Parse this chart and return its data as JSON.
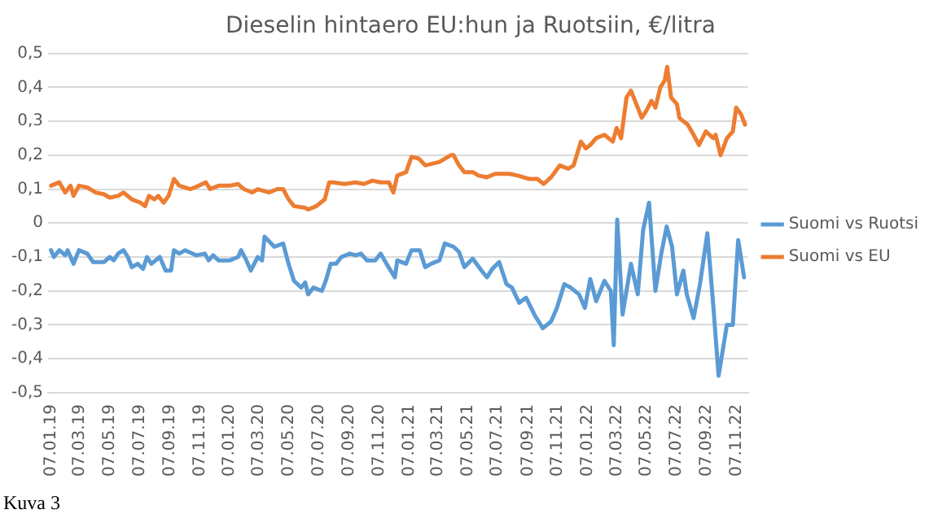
{
  "chart_data": {
    "type": "line",
    "title": "Dieselin hintaero EU:hun ja Ruotsiin, €/litra",
    "annotations": [
      "Kuva 3"
    ],
    "xlim": [
      "2019-01-01",
      "2022-11-30"
    ],
    "xticks": [
      {
        "value": "2019-01-07",
        "label": "07.01.19"
      },
      {
        "value": "2019-03-07",
        "label": "07.03.19"
      },
      {
        "value": "2019-05-07",
        "label": "07.05.19"
      },
      {
        "value": "2019-07-07",
        "label": "07.07.19"
      },
      {
        "value": "2019-09-07",
        "label": "07.09.19"
      },
      {
        "value": "2019-11-07",
        "label": "07.11.19"
      },
      {
        "value": "2020-01-07",
        "label": "07.01.20"
      },
      {
        "value": "2020-03-07",
        "label": "07.03.20"
      },
      {
        "value": "2020-05-07",
        "label": "07.05.20"
      },
      {
        "value": "2020-07-07",
        "label": "07.07.20"
      },
      {
        "value": "2020-09-07",
        "label": "07.09.20"
      },
      {
        "value": "2020-11-07",
        "label": "07.11.20"
      },
      {
        "value": "2021-01-07",
        "label": "07.01.21"
      },
      {
        "value": "2021-03-07",
        "label": "07.03.21"
      },
      {
        "value": "2021-05-07",
        "label": "07.05.21"
      },
      {
        "value": "2021-07-07",
        "label": "07.07.21"
      },
      {
        "value": "2021-09-07",
        "label": "07.09.21"
      },
      {
        "value": "2021-11-07",
        "label": "07.11.21"
      },
      {
        "value": "2022-01-07",
        "label": "07.01.22"
      },
      {
        "value": "2022-03-07",
        "label": "07.03.22"
      },
      {
        "value": "2022-05-07",
        "label": "07.05.22"
      },
      {
        "value": "2022-07-07",
        "label": "07.07.22"
      },
      {
        "value": "2022-09-07",
        "label": "07.09.22"
      },
      {
        "value": "2022-11-07",
        "label": "07.11.22"
      }
    ],
    "ylim": [
      -0.5,
      0.5
    ],
    "yticks": [
      {
        "value": -0.5,
        "label": "-0,5"
      },
      {
        "value": -0.4,
        "label": "-0,4"
      },
      {
        "value": -0.3,
        "label": "-0,3"
      },
      {
        "value": -0.2,
        "label": "-0,2"
      },
      {
        "value": -0.1,
        "label": "-0,1"
      },
      0,
      {
        "value": 0.1,
        "label": "0,1"
      },
      {
        "value": 0.2,
        "label": "0,2"
      },
      {
        "value": 0.3,
        "label": "0,3"
      },
      {
        "value": 0.4,
        "label": "0,4"
      },
      {
        "value": 0.5,
        "label": "0,5"
      }
    ],
    "grid": "y",
    "legend": "right",
    "marker": "none",
    "line_style": "solid",
    "series": [
      {
        "name": "Suomi vs Ruotsi",
        "color": "#5b9bd5",
        "x": [
          "2019-01-07",
          "2019-01-13",
          "2019-01-24",
          "2019-02-05",
          "2019-02-10",
          "2019-02-22",
          "2019-03-05",
          "2019-03-22",
          "2019-04-03",
          "2019-04-25",
          "2019-05-07",
          "2019-05-15",
          "2019-05-24",
          "2019-06-04",
          "2019-06-13",
          "2019-06-21",
          "2019-07-03",
          "2019-07-14",
          "2019-07-22",
          "2019-07-31",
          "2019-08-17",
          "2019-08-29",
          "2019-09-09",
          "2019-09-15",
          "2019-09-26",
          "2019-10-08",
          "2019-10-31",
          "2019-11-17",
          "2019-11-25",
          "2019-12-04",
          "2019-12-15",
          "2020-01-07",
          "2020-01-24",
          "2020-01-30",
          "2020-02-10",
          "2020-02-19",
          "2020-03-04",
          "2020-03-13",
          "2020-03-18",
          "2020-04-07",
          "2020-04-25",
          "2020-05-06",
          "2020-05-17",
          "2020-06-01",
          "2020-06-09",
          "2020-06-15",
          "2020-06-26",
          "2020-07-13",
          "2020-07-21",
          "2020-07-31",
          "2020-08-11",
          "2020-08-22",
          "2020-09-08",
          "2020-09-20",
          "2020-10-01",
          "2020-10-13",
          "2020-10-30",
          "2020-11-10",
          "2020-11-22",
          "2020-12-09",
          "2020-12-14",
          "2021-01-01",
          "2021-01-12",
          "2021-01-29",
          "2021-02-09",
          "2021-02-21",
          "2021-03-10",
          "2021-03-21",
          "2021-04-08",
          "2021-04-19",
          "2021-04-30",
          "2021-05-17",
          "2021-06-04",
          "2021-06-15",
          "2021-06-26",
          "2021-07-10",
          "2021-07-25",
          "2021-08-05",
          "2021-08-20",
          "2021-09-03",
          "2021-09-20",
          "2021-10-07",
          "2021-10-24",
          "2021-11-05",
          "2021-11-20",
          "2021-12-03",
          "2021-12-20",
          "2022-01-01",
          "2022-01-12",
          "2022-01-24",
          "2022-02-10",
          "2022-02-23",
          "2022-03-01",
          "2022-03-08",
          "2022-03-19",
          "2022-04-05",
          "2022-04-19",
          "2022-04-30",
          "2022-05-12",
          "2022-05-25",
          "2022-06-06",
          "2022-06-17",
          "2022-06-28",
          "2022-07-08",
          "2022-07-21",
          "2022-07-28",
          "2022-08-11",
          "2022-08-24",
          "2022-09-08",
          "2022-09-20",
          "2022-10-01",
          "2022-10-18",
          "2022-10-30",
          "2022-11-10",
          "2022-11-22"
        ],
        "values": [
          -0.08,
          -0.1,
          -0.08,
          -0.095,
          -0.08,
          -0.12,
          -0.08,
          -0.09,
          -0.115,
          -0.115,
          -0.1,
          -0.11,
          -0.09,
          -0.08,
          -0.1,
          -0.13,
          -0.12,
          -0.135,
          -0.1,
          -0.12,
          -0.1,
          -0.14,
          -0.14,
          -0.08,
          -0.09,
          -0.08,
          -0.095,
          -0.09,
          -0.11,
          -0.095,
          -0.11,
          -0.11,
          -0.1,
          -0.08,
          -0.11,
          -0.14,
          -0.1,
          -0.11,
          -0.04,
          -0.07,
          -0.06,
          -0.12,
          -0.17,
          -0.19,
          -0.175,
          -0.21,
          -0.19,
          -0.2,
          -0.17,
          -0.12,
          -0.12,
          -0.1,
          -0.09,
          -0.095,
          -0.09,
          -0.11,
          -0.11,
          -0.09,
          -0.12,
          -0.16,
          -0.11,
          -0.12,
          -0.08,
          -0.08,
          -0.13,
          -0.12,
          -0.11,
          -0.06,
          -0.07,
          -0.085,
          -0.13,
          -0.105,
          -0.14,
          -0.16,
          -0.135,
          -0.115,
          -0.18,
          -0.19,
          -0.235,
          -0.22,
          -0.27,
          -0.31,
          -0.29,
          -0.25,
          -0.18,
          -0.19,
          -0.21,
          -0.25,
          -0.165,
          -0.23,
          -0.17,
          -0.2,
          -0.36,
          0.01,
          -0.27,
          -0.12,
          -0.21,
          -0.02,
          0.06,
          -0.2,
          -0.09,
          -0.01,
          -0.07,
          -0.21,
          -0.14,
          -0.21,
          -0.28,
          -0.18,
          -0.03,
          -0.24,
          -0.45,
          -0.3,
          -0.3,
          -0.05,
          -0.16
        ]
      },
      {
        "name": "Suomi vs EU",
        "color": "#ed7d31",
        "x": [
          "2019-01-07",
          "2019-01-24",
          "2019-02-05",
          "2019-02-16",
          "2019-02-22",
          "2019-03-05",
          "2019-03-22",
          "2019-04-08",
          "2019-04-25",
          "2019-05-07",
          "2019-05-24",
          "2019-06-04",
          "2019-06-21",
          "2019-07-09",
          "2019-07-18",
          "2019-07-26",
          "2019-08-06",
          "2019-08-14",
          "2019-08-25",
          "2019-09-04",
          "2019-09-15",
          "2019-09-26",
          "2019-10-19",
          "2019-11-05",
          "2019-11-19",
          "2019-11-28",
          "2019-12-15",
          "2020-01-07",
          "2020-01-24",
          "2020-02-05",
          "2020-02-22",
          "2020-03-04",
          "2020-03-27",
          "2020-04-13",
          "2020-04-25",
          "2020-05-06",
          "2020-05-17",
          "2020-06-09",
          "2020-06-15",
          "2020-07-02",
          "2020-07-19",
          "2020-07-28",
          "2020-08-05",
          "2020-08-28",
          "2020-09-20",
          "2020-10-07",
          "2020-10-24",
          "2020-11-10",
          "2020-11-27",
          "2020-12-06",
          "2020-12-14",
          "2021-01-01",
          "2021-01-12",
          "2021-01-27",
          "2021-02-09",
          "2021-03-10",
          "2021-04-02",
          "2021-04-08",
          "2021-04-19",
          "2021-04-30",
          "2021-05-17",
          "2021-05-29",
          "2021-06-15",
          "2021-07-02",
          "2021-07-31",
          "2021-08-17",
          "2021-08-28",
          "2021-09-09",
          "2021-09-26",
          "2021-10-09",
          "2021-10-24",
          "2021-11-11",
          "2021-11-28",
          "2021-12-09",
          "2021-12-24",
          "2022-01-03",
          "2022-01-12",
          "2022-01-24",
          "2022-02-10",
          "2022-02-27",
          "2022-03-07",
          "2022-03-16",
          "2022-03-27",
          "2022-04-05",
          "2022-04-19",
          "2022-04-27",
          "2022-05-06",
          "2022-05-17",
          "2022-05-25",
          "2022-06-04",
          "2022-06-13",
          "2022-06-18",
          "2022-06-26",
          "2022-07-08",
          "2022-07-13",
          "2022-07-21",
          "2022-07-30",
          "2022-08-11",
          "2022-08-22",
          "2022-09-05",
          "2022-09-20",
          "2022-09-25",
          "2022-10-05",
          "2022-10-18",
          "2022-10-30",
          "2022-11-06",
          "2022-11-16",
          "2022-11-24"
        ],
        "values": [
          0.11,
          0.12,
          0.09,
          0.11,
          0.08,
          0.11,
          0.105,
          0.09,
          0.085,
          0.075,
          0.08,
          0.09,
          0.07,
          0.06,
          0.05,
          0.08,
          0.07,
          0.08,
          0.06,
          0.08,
          0.13,
          0.11,
          0.1,
          0.11,
          0.12,
          0.1,
          0.11,
          0.11,
          0.115,
          0.1,
          0.09,
          0.1,
          0.09,
          0.1,
          0.1,
          0.07,
          0.05,
          0.045,
          0.04,
          0.05,
          0.07,
          0.12,
          0.12,
          0.115,
          0.12,
          0.115,
          0.125,
          0.12,
          0.12,
          0.09,
          0.14,
          0.15,
          0.195,
          0.19,
          0.17,
          0.18,
          0.2,
          0.2,
          0.17,
          0.15,
          0.15,
          0.14,
          0.135,
          0.145,
          0.145,
          0.14,
          0.135,
          0.13,
          0.13,
          0.115,
          0.135,
          0.17,
          0.16,
          0.17,
          0.24,
          0.22,
          0.23,
          0.25,
          0.26,
          0.24,
          0.28,
          0.25,
          0.37,
          0.39,
          0.34,
          0.31,
          0.33,
          0.36,
          0.34,
          0.4,
          0.42,
          0.46,
          0.37,
          0.35,
          0.31,
          0.3,
          0.29,
          0.26,
          0.23,
          0.27,
          0.25,
          0.26,
          0.2,
          0.25,
          0.27,
          0.34,
          0.32,
          0.29
        ]
      }
    ]
  }
}
